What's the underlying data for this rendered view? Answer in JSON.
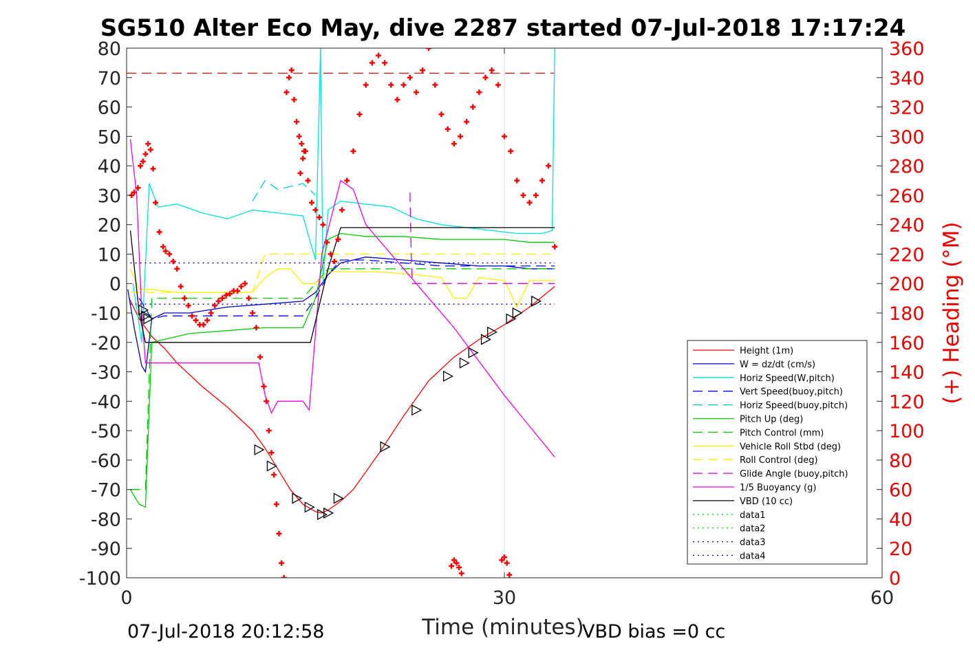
{
  "chart_data": {
    "type": "line",
    "title": "SG510 Alter Eco May, dive 2287 started 07-Jul-2018 17:17:24",
    "xlabel": "Time (minutes)",
    "ylabel_right": "(+) Heading (°M)",
    "footer_left": "07-Jul-2018 20:12:58",
    "footer_right": "VBD bias =0 cc",
    "xlim": [
      0,
      60
    ],
    "ylim_left": [
      -100,
      80
    ],
    "ylim_right": [
      0,
      360
    ],
    "x_ticks": [
      0,
      30,
      60
    ],
    "y_ticks_left": [
      80,
      70,
      60,
      50,
      40,
      30,
      20,
      10,
      0,
      -10,
      -20,
      -30,
      -40,
      -50,
      -60,
      -70,
      -80,
      -90,
      -100
    ],
    "y_ticks_right": [
      360,
      340,
      320,
      300,
      280,
      260,
      240,
      220,
      200,
      180,
      160,
      140,
      120,
      100,
      80,
      60,
      40,
      20,
      0
    ],
    "grid": "x-major",
    "legend_position": "lower-right",
    "series": [
      {
        "name": "Height (1m)",
        "color": "#ff0000",
        "style": "solid",
        "x": [
          0.2,
          1,
          2,
          3,
          4,
          6,
          8,
          10,
          11,
          12,
          13,
          14,
          15,
          15.5,
          16,
          17,
          18,
          20,
          22,
          24,
          26,
          28,
          30,
          32,
          34
        ],
        "y": [
          -5,
          -12,
          -18,
          -22,
          -27,
          -35,
          -42,
          -50,
          -56,
          -63,
          -70,
          -75,
          -77.5,
          -78,
          -77,
          -74,
          -70,
          -58,
          -45,
          -33,
          -25,
          -19,
          -14,
          -8,
          -1
        ]
      },
      {
        "name": "W = dz/dt (cm/s)",
        "color": "#0000cc",
        "style": "solid",
        "x": [
          0.1,
          0.6,
          1.2,
          1.5,
          2,
          3,
          5,
          8,
          11,
          14,
          15,
          16,
          17,
          19,
          22,
          25,
          28,
          30,
          32,
          34
        ],
        "y": [
          -2,
          -15,
          -28,
          -30,
          -12,
          -10,
          -10,
          -8,
          -7,
          -6,
          -3,
          3,
          7,
          9,
          8,
          7,
          6,
          6,
          5,
          5
        ]
      },
      {
        "name": "Horiz Speed(W,pitch)",
        "color": "#00e0e0",
        "style": "solid",
        "x": [
          0.5,
          1.2,
          1.8,
          2.5,
          4,
          6,
          8,
          10,
          12,
          14,
          15,
          15.4,
          15.6,
          16,
          17,
          19,
          21,
          23,
          25,
          27,
          29,
          31,
          33,
          33.8,
          34
        ],
        "y": [
          0,
          -20,
          34,
          26,
          27,
          24,
          22,
          25,
          24,
          23,
          8,
          80,
          0,
          25,
          28,
          27,
          26,
          22,
          20,
          19,
          18,
          17,
          17,
          18,
          80
        ]
      },
      {
        "name": "Vert Speed(buoy,pitch)",
        "color": "#0000ff",
        "style": "dashed",
        "x": [
          1,
          2,
          3,
          5,
          8,
          11,
          14,
          15,
          16,
          17,
          19,
          22,
          25,
          28,
          30,
          32,
          34
        ],
        "y": [
          -5,
          -12,
          -11,
          -11,
          -11,
          -11,
          -11,
          -5,
          3,
          8,
          8,
          7,
          6,
          6,
          6,
          6,
          6
        ]
      },
      {
        "name": "Horiz Speed(buoy,pitch)",
        "color": "#00cccc",
        "style": "dashed",
        "x": [
          10,
          11,
          12,
          13,
          14,
          15
        ],
        "y": [
          28,
          35,
          32,
          33,
          34,
          30
        ]
      },
      {
        "name": "Pitch Up (deg)",
        "color": "#00cc00",
        "style": "solid",
        "x": [
          0.3,
          1,
          1.5,
          2,
          3,
          5,
          8,
          11,
          14,
          15,
          16,
          17,
          19,
          22,
          25,
          28,
          30,
          32,
          34
        ],
        "y": [
          -70,
          -75,
          -76,
          -20,
          -19,
          -17,
          -16,
          -15,
          -15,
          -5,
          15,
          17,
          16,
          16,
          15,
          15,
          15,
          14,
          14
        ]
      },
      {
        "name": "Pitch Control (mm)",
        "color": "#00cc00",
        "style": "dashed",
        "x": [
          0.3,
          1,
          1.5,
          2,
          3,
          6,
          10,
          14,
          15,
          16,
          18,
          22,
          26,
          30,
          34
        ],
        "y": [
          -70,
          -70,
          -70,
          -5,
          -5,
          -5,
          -5,
          -5,
          0,
          5,
          5,
          5,
          5,
          5,
          5
        ]
      },
      {
        "name": "Vehicle Roll Stbd (deg)",
        "color": "#ffee00",
        "style": "solid",
        "x": [
          0.3,
          1,
          2,
          4,
          6,
          8,
          10,
          11,
          12,
          13,
          14,
          15,
          16,
          17,
          20,
          23,
          25,
          26,
          27,
          28,
          30,
          31,
          32,
          34
        ],
        "y": [
          5,
          -2,
          -2,
          -3,
          -3,
          -3,
          -3,
          2,
          5,
          5,
          0,
          0,
          4,
          4,
          4,
          3,
          2,
          -5,
          -5,
          2,
          1,
          -8,
          1,
          1
        ]
      },
      {
        "name": "Roll Control (deg)",
        "color": "#ffee00",
        "style": "dashed",
        "x": [
          0.3,
          1,
          3,
          6,
          10,
          11,
          14,
          15,
          16,
          20,
          24,
          27,
          30,
          34
        ],
        "y": [
          -3,
          -3,
          -3,
          -3,
          -3,
          10,
          10,
          10,
          10,
          10,
          10,
          10,
          10,
          10
        ]
      },
      {
        "name": "Glide Angle (buoy,pitch)",
        "color": "#cc00cc",
        "style": "dashed",
        "x": [
          22.5,
          22.6,
          22.7,
          23,
          26,
          30,
          34
        ],
        "y": [
          31,
          10,
          0,
          0,
          0,
          0,
          0
        ]
      },
      {
        "name": "1/5 Buoyancy (g)",
        "color": "#ee00ee",
        "style": "solid",
        "x": [
          0.3,
          0.8,
          1.2,
          1.5,
          2,
          4,
          8,
          10.5,
          11,
          11.5,
          12,
          14,
          14.5,
          15.5,
          17,
          18,
          19,
          22,
          26,
          30,
          34
        ],
        "y": [
          49,
          30,
          -10,
          -27,
          -27,
          -27,
          -27,
          -27,
          -38,
          -44,
          -40,
          -40,
          -43,
          10,
          35,
          32,
          20,
          5,
          -15,
          -38,
          -59
        ]
      },
      {
        "name": "VBD (10 cc)",
        "color": "#000000",
        "style": "solid",
        "x": [
          0.3,
          1,
          1.5,
          2,
          5,
          10,
          14.6,
          16,
          17,
          20,
          25,
          30,
          34
        ],
        "y": [
          18,
          -10,
          -20,
          -20,
          -20,
          -20,
          -20,
          5,
          19,
          19,
          19,
          19,
          19
        ]
      },
      {
        "name": "data1",
        "color": "#00ee00",
        "style": "dotted",
        "x": [],
        "y": []
      },
      {
        "name": "data2",
        "color": "#00ee00",
        "style": "dotted",
        "x": [],
        "y": []
      },
      {
        "name": "data3",
        "color": "#0000bb",
        "style": "dotted",
        "x": [
          0.3,
          34
        ],
        "y": [
          7,
          7
        ]
      },
      {
        "name": "data4",
        "color": "#0000bb",
        "style": "dotted",
        "x": [
          0.3,
          34
        ],
        "y": [
          -7,
          -7
        ]
      }
    ],
    "reference_line": {
      "color": "#e60000",
      "style": "dashed",
      "x": [
        0,
        34
      ],
      "y_right": 343
    },
    "heading_points": {
      "color": "#ff0000",
      "marker": "+",
      "axis": "right",
      "x": [
        0.4,
        0.6,
        0.9,
        1.1,
        1.3,
        1.5,
        1.7,
        1.9,
        2.1,
        2.3,
        2.6,
        2.9,
        3.1,
        3.4,
        3.7,
        4.0,
        4.3,
        4.6,
        4.9,
        5.2,
        5.5,
        5.8,
        6.1,
        6.4,
        6.7,
        7.0,
        7.3,
        7.6,
        7.9,
        8.2,
        8.5,
        8.8,
        9.1,
        9.4,
        9.7,
        10.0,
        10.3,
        10.6,
        10.9,
        11.1,
        11.3,
        11.5,
        11.7,
        11.9,
        12.1,
        12.3,
        12.5,
        12.7,
        12.9,
        13.1,
        13.3,
        13.5,
        13.7,
        13.9,
        14.1,
        14.4,
        14.7,
        15.0,
        15.3,
        15.6,
        15.9,
        16.2,
        16.5,
        16.8,
        17.1,
        17.5,
        18.0,
        18.5,
        19.0,
        19.5,
        20.0,
        20.5,
        21.0,
        21.5,
        22.0,
        22.5,
        23.0,
        23.5,
        24.0,
        24.5,
        25.0,
        25.5,
        26.0,
        26.5,
        27.0,
        27.5,
        28.0,
        28.5,
        29.0,
        29.5,
        30.0,
        30.5,
        31.0,
        31.5,
        32.0,
        32.5,
        33.0,
        33.5,
        34.0,
        13.8,
        14.0,
        14.2,
        25.8,
        26.0,
        26.2,
        26.4,
        26.6,
        29.8,
        30.0,
        30.2,
        30.4
      ],
      "y": [
        260,
        262,
        265,
        280,
        283,
        288,
        295,
        291,
        278,
        255,
        235,
        225,
        222,
        220,
        215,
        210,
        198,
        190,
        185,
        178,
        175,
        172,
        172,
        175,
        180,
        185,
        188,
        190,
        192,
        193,
        195,
        195,
        198,
        200,
        190,
        180,
        170,
        150,
        130,
        120,
        100,
        85,
        70,
        50,
        30,
        10,
        0,
        330,
        340,
        345,
        325,
        310,
        300,
        295,
        290,
        270,
        255,
        250,
        245,
        240,
        228,
        220,
        215,
        230,
        250,
        270,
        290,
        315,
        335,
        350,
        355,
        350,
        335,
        325,
        335,
        340,
        330,
        345,
        360,
        335,
        315,
        305,
        295,
        300,
        310,
        320,
        330,
        340,
        345,
        335,
        300,
        290,
        270,
        260,
        255,
        260,
        270,
        280,
        225,
        275,
        285,
        290,
        8,
        12,
        10,
        7,
        3,
        12,
        14,
        10,
        2
      ]
    },
    "markers": {
      "color": "#000000",
      "marker": "triangle",
      "x": [
        1.3,
        1.5,
        1.7,
        10.5,
        11.5,
        13.5,
        14.5,
        15.5,
        16.0,
        16.8,
        20.5,
        23.0,
        25.5,
        26.8,
        27.5,
        28.5,
        29.0,
        30.5,
        31.0,
        32.5
      ],
      "y": [
        -9,
        -11,
        -12,
        -56.5,
        -62,
        -73,
        -76,
        -78.5,
        -78,
        -73,
        -55.5,
        -43,
        -31.5,
        -27,
        -23.5,
        -19,
        -16.5,
        -12,
        -10,
        -6
      ]
    }
  }
}
